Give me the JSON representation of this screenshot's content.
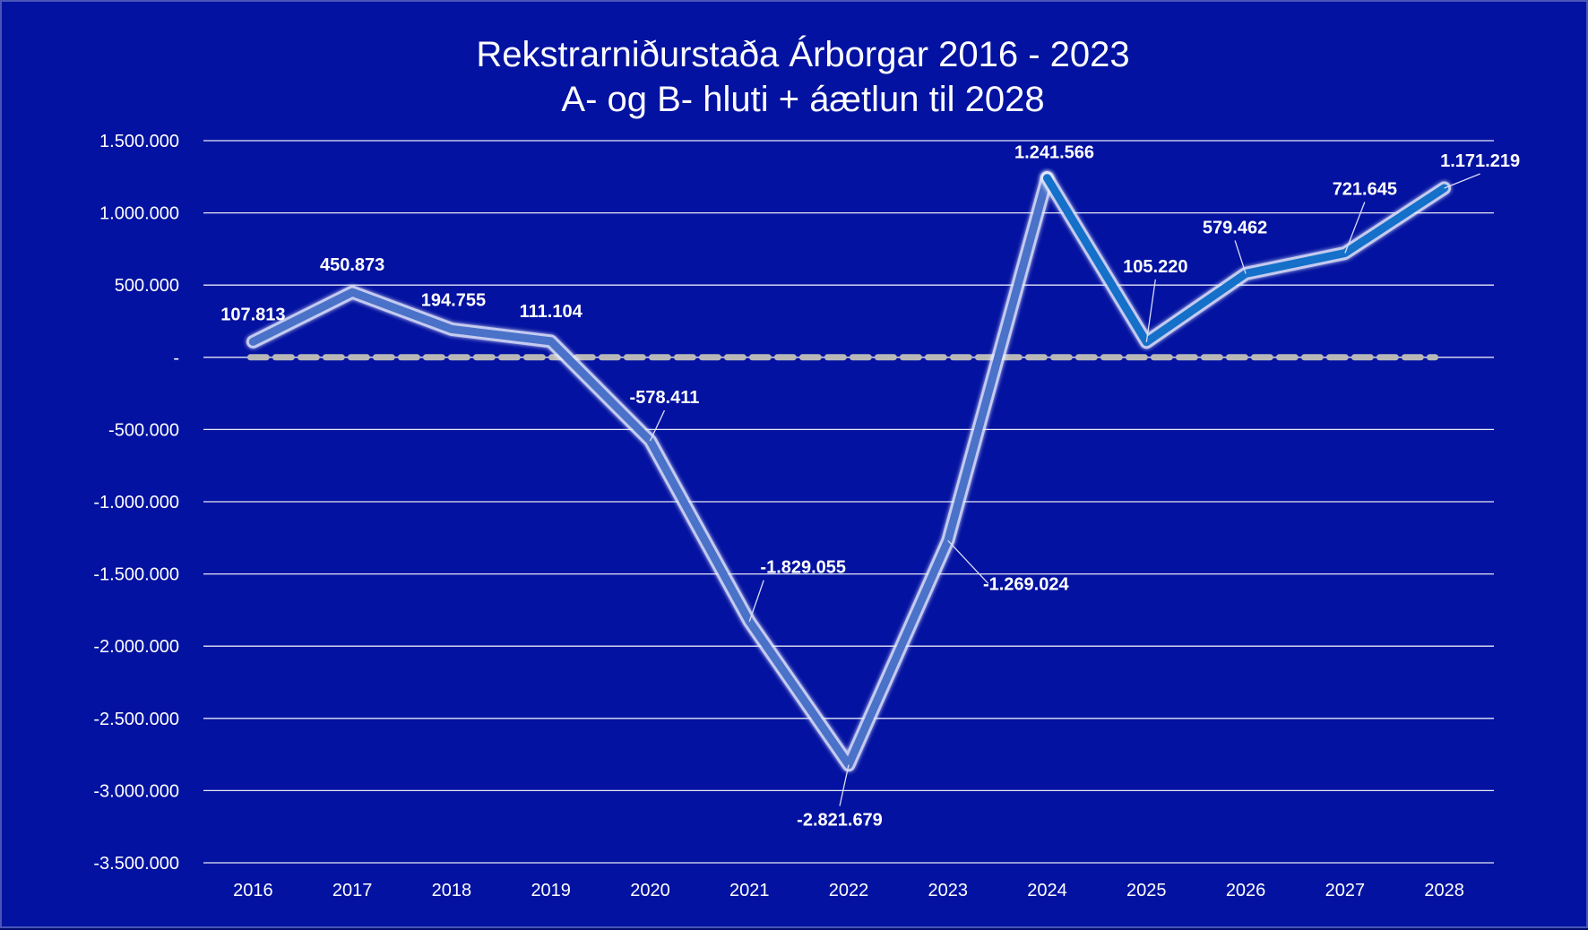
{
  "chart_data": {
    "type": "line",
    "title": "Rekstrarniðurstaða Árborgar 2016 - 2023",
    "subtitle": "A- og B- hluti + áætlun til 2028",
    "xlabel": "",
    "ylabel": "",
    "categories": [
      "2016",
      "2017",
      "2018",
      "2019",
      "2020",
      "2021",
      "2022",
      "2023",
      "2024",
      "2025",
      "2026",
      "2027",
      "2028"
    ],
    "values": [
      107813,
      450873,
      194755,
      111104,
      -578411,
      -1829055,
      -2821679,
      -1269024,
      1241566,
      105220,
      579462,
      721645,
      1171219
    ],
    "data_labels": [
      "107.813",
      "450.873",
      "194.755",
      "111.104",
      "-578.411",
      "-1.829.055",
      "-2.821.679",
      "-1.269.024",
      "1.241.566",
      "105.220",
      "579.462",
      "721.645",
      "1.171.219"
    ],
    "y_ticks": [
      1500000,
      1000000,
      500000,
      0,
      -500000,
      -1000000,
      -1500000,
      -2000000,
      -2500000,
      -3000000,
      -3500000
    ],
    "y_tick_labels": [
      "1.500.000",
      "1.000.000",
      "500.000",
      "-",
      "-500.000",
      "-1.000.000",
      "-1.500.000",
      "-2.000.000",
      "-2.500.000",
      "-3.000.000",
      "-3.500.000"
    ],
    "ylim": [
      -3500000,
      1500000
    ],
    "grid": true,
    "legend": "none",
    "actual_through": "2024",
    "zero_reference_line": {
      "value": 0,
      "style": "dashed",
      "color": "#B8B8B8"
    },
    "colors": {
      "background": "#0312A0",
      "actual_line": "#4A72C8",
      "forecast_line": "#1470C8",
      "line_glow": "#E6EBFF",
      "text": "#FFFFFF",
      "grid": "#FFFFFF"
    }
  }
}
